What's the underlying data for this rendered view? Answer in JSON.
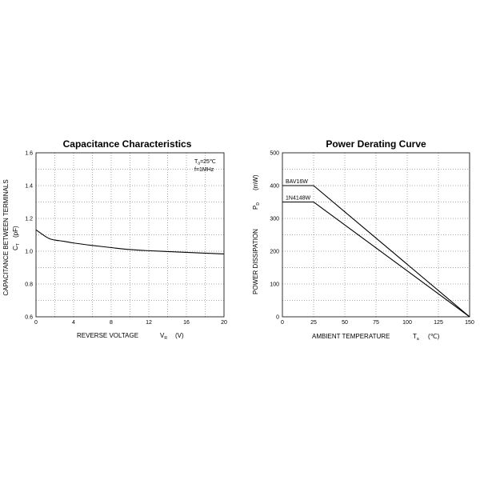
{
  "chart_data": [
    {
      "type": "line",
      "title": "Capacitance Characteristics",
      "xlabel": "REVERSE VOLTAGE",
      "xsymbol": "V",
      "xsymbol_sub": "R",
      "xunit": "(V)",
      "ylabel": "CAPACITANCE BETWEEN TERMINALS",
      "ysymbol": "C",
      "ysymbol_sub": "T",
      "yunit": "(pF)",
      "xlim": [
        0,
        20
      ],
      "ylim": [
        0.6,
        1.6
      ],
      "xticks": [
        "0",
        "4",
        "8",
        "12",
        "16",
        "20"
      ],
      "yticks": [
        "0.6",
        "0.8",
        "1.0",
        "1.2",
        "1.4",
        "1.6"
      ],
      "grid": true,
      "annotation_line1_main": "T",
      "annotation_line1_sub": "a",
      "annotation_line1_rest": "=25℃",
      "annotation_line2": "f=1MHz",
      "series": [
        {
          "x": [
            0,
            0.5,
            1,
            1.5,
            2,
            3,
            4,
            6,
            8,
            10,
            12,
            14,
            16,
            18,
            20
          ],
          "values": [
            1.13,
            1.11,
            1.09,
            1.075,
            1.068,
            1.06,
            1.05,
            1.035,
            1.022,
            1.01,
            1.003,
            0.998,
            0.993,
            0.988,
            0.983
          ]
        }
      ]
    },
    {
      "type": "line",
      "title": "Power Derating Curve",
      "xlabel": "AMBIENT TEMPERATURE",
      "xsymbol": "T",
      "xsymbol_sub": "a",
      "xunit": "(℃)",
      "ylabel": "POWER DISSIPATION",
      "ysymbol": "P",
      "ysymbol_sub": "D",
      "yunit": "(mW)",
      "xlim": [
        0,
        150
      ],
      "ylim": [
        0,
        500
      ],
      "xticks": [
        "0",
        "25",
        "50",
        "75",
        "100",
        "125",
        "150"
      ],
      "yticks": [
        "0",
        "100",
        "200",
        "300",
        "400",
        "500"
      ],
      "grid": true,
      "series": [
        {
          "name": "BAV16W",
          "x": [
            0,
            25,
            150
          ],
          "values": [
            400,
            400,
            0
          ]
        },
        {
          "name": "1N4148W",
          "x": [
            0,
            25,
            150
          ],
          "values": [
            350,
            350,
            0
          ]
        }
      ]
    }
  ]
}
